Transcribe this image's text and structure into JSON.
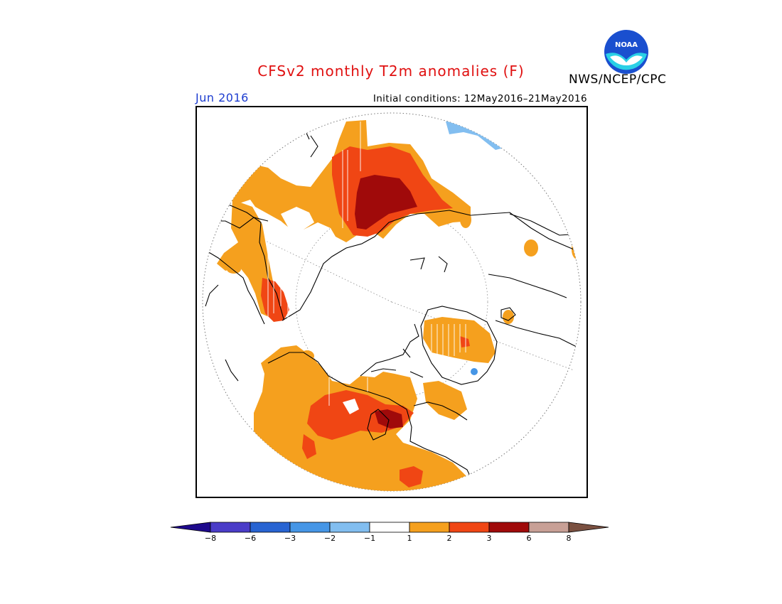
{
  "header": {
    "title": "CFSv2 monthly T2m anomalies (F)",
    "organization": "NWS/NCEP/CPC",
    "logo_text": "NOAA",
    "month": "Jun 2016",
    "initial_conditions": "Initial conditions: 12May2016–21May2016"
  },
  "map": {
    "projection": "north polar stereographic",
    "variable": "T2m anomaly",
    "units": "F"
  },
  "legend": {
    "type": "colorbar",
    "ticks": [
      "−8",
      "−6",
      "−3",
      "−2",
      "−1",
      "1",
      "2",
      "3",
      "6",
      "8"
    ],
    "colors": {
      "below_min": "#1e0a8c",
      "neg8_neg6": "#4a3cc8",
      "neg6_neg3": "#2864d2",
      "neg3_neg2": "#4696e6",
      "neg2_neg1": "#82bef0",
      "neg1_pos1": "#ffffff",
      "pos1_pos2": "#f5a01e",
      "pos2_pos3": "#f04614",
      "pos3_pos6": "#a00a0a",
      "pos6_pos8": "#c8a096",
      "above_max": "#7a5040"
    }
  },
  "colors": {
    "title_red": "#e01010",
    "month_blue": "#1c3cd0",
    "orange": "#f5a01e",
    "red": "#f04614",
    "dark_red": "#a00a0a",
    "light_blue": "#82bef0"
  }
}
